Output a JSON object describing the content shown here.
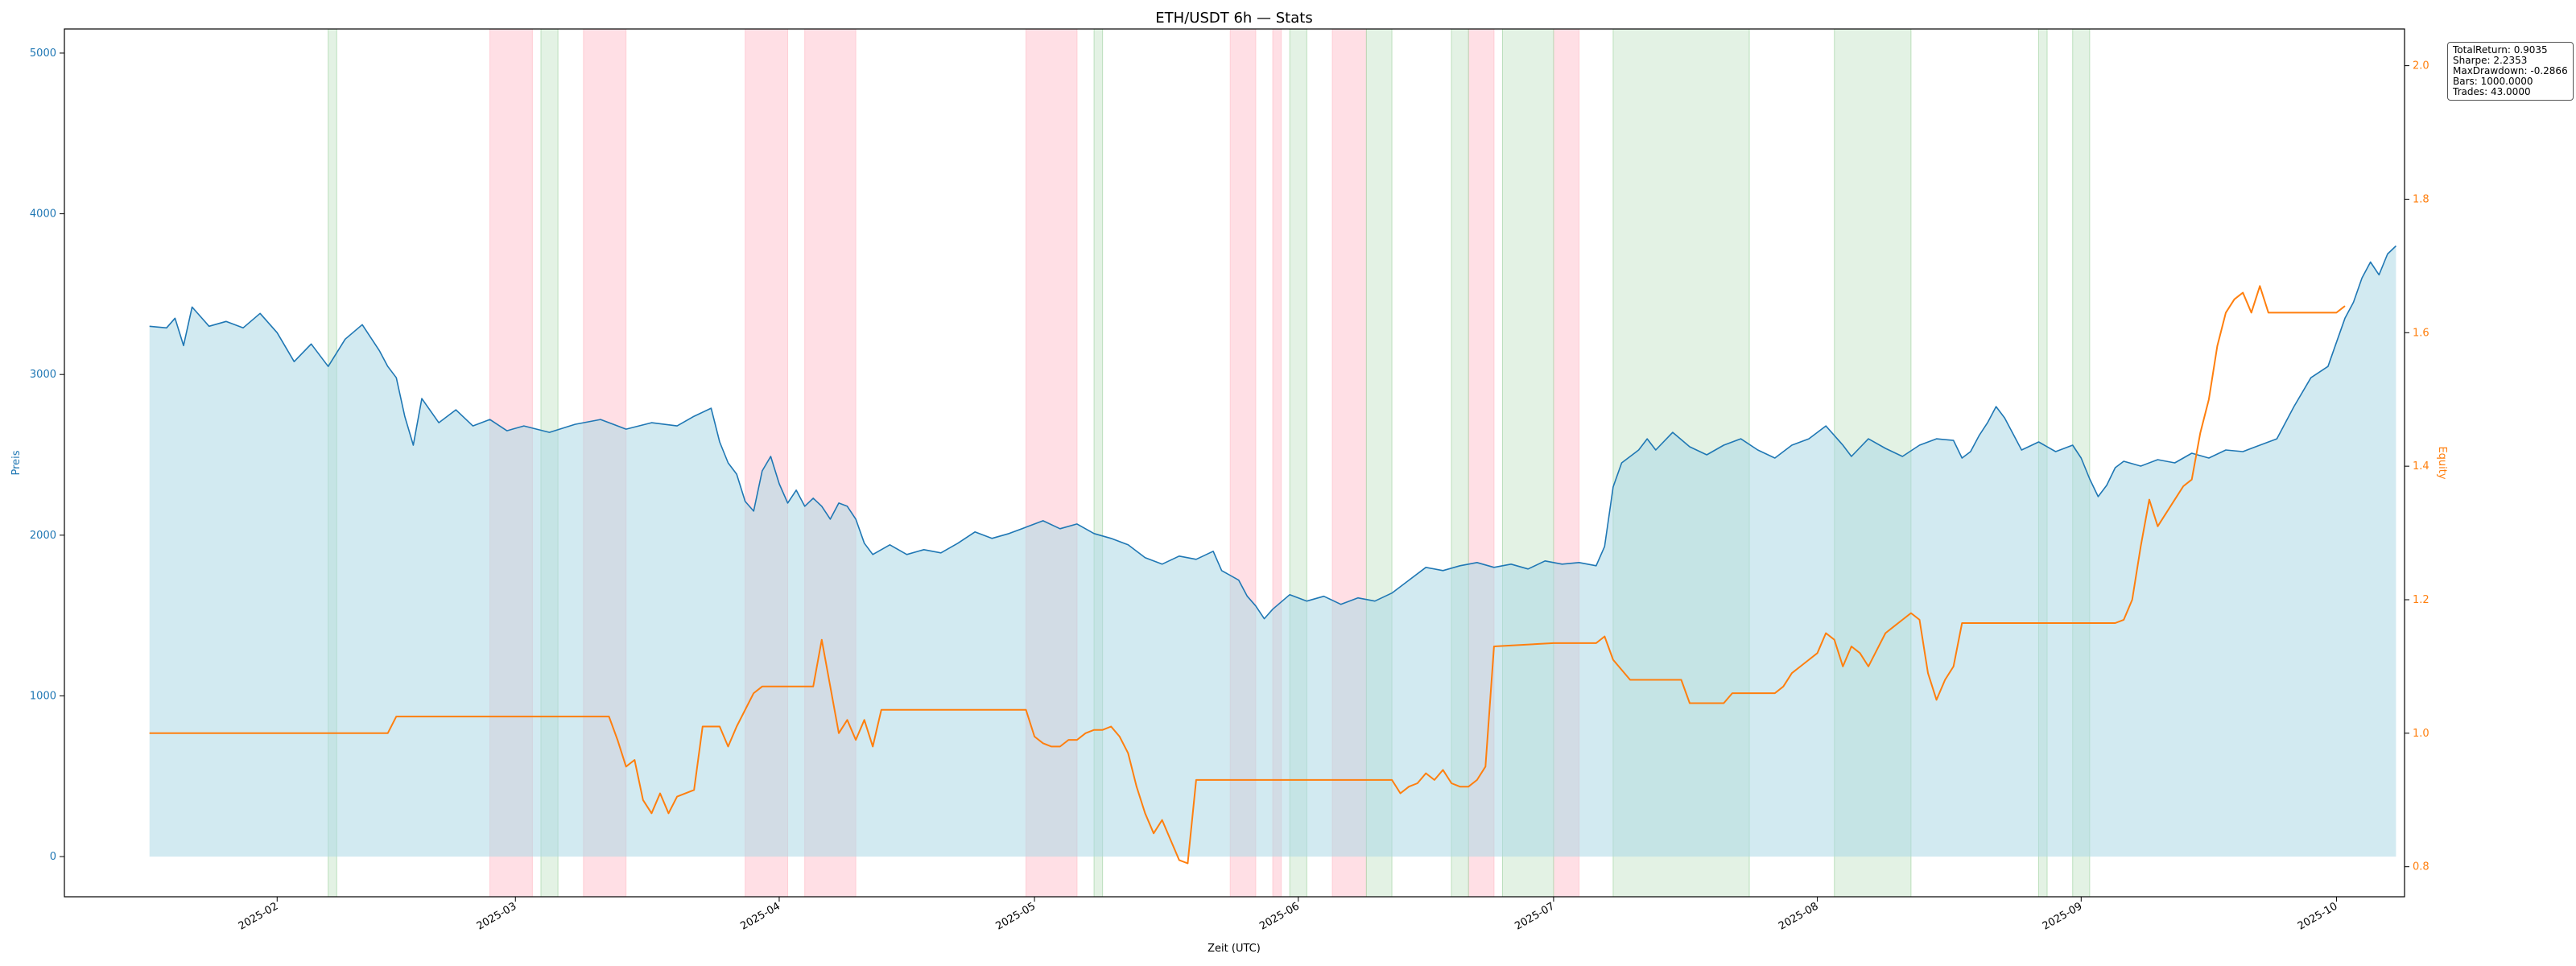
{
  "chart_data": {
    "type": "line",
    "title": "ETH/USDT 6h — Stats",
    "xlabel": "Zeit (UTC)",
    "y_left_label": "Preis",
    "y_right_label": "Equity",
    "colors": {
      "price": "#1f77b4",
      "equity": "#ff7f0e",
      "price_fill": "#add8e6",
      "short_span": "#ffc0cb",
      "long_span": "#c8e6c9"
    },
    "x_range": [
      "2025-01-07",
      "2025-10-09"
    ],
    "y_left_range": [
      -250,
      5150
    ],
    "y_right_range": [
      0.755,
      2.055
    ],
    "x_ticks": [
      "2025-02",
      "2025-03",
      "2025-04",
      "2025-05",
      "2025-06",
      "2025-07",
      "2025-08",
      "2025-09",
      "2025-10"
    ],
    "x_tick_dates": [
      "2025-02-01",
      "2025-03-01",
      "2025-04-01",
      "2025-05-01",
      "2025-06-01",
      "2025-07-01",
      "2025-08-01",
      "2025-09-01",
      "2025-10-01"
    ],
    "y_left_ticks": [
      0,
      1000,
      2000,
      3000,
      4000,
      5000
    ],
    "y_right_ticks": [
      0.8,
      1.0,
      1.2,
      1.4,
      1.6,
      1.8,
      2.0
    ],
    "price_series": {
      "name": "Preis",
      "points": [
        [
          "2025-01-17",
          3300
        ],
        [
          "2025-01-19",
          3290
        ],
        [
          "2025-01-20",
          3350
        ],
        [
          "2025-01-21",
          3180
        ],
        [
          "2025-01-22",
          3420
        ],
        [
          "2025-01-24",
          3300
        ],
        [
          "2025-01-26",
          3330
        ],
        [
          "2025-01-28",
          3290
        ],
        [
          "2025-01-30",
          3380
        ],
        [
          "2025-02-01",
          3260
        ],
        [
          "2025-02-03",
          3080
        ],
        [
          "2025-02-05",
          3190
        ],
        [
          "2025-02-06",
          3120
        ],
        [
          "2025-02-07",
          3050
        ],
        [
          "2025-02-09",
          3220
        ],
        [
          "2025-02-11",
          3310
        ],
        [
          "2025-02-13",
          3150
        ],
        [
          "2025-02-14",
          3050
        ],
        [
          "2025-02-15",
          2980
        ],
        [
          "2025-02-16",
          2740
        ],
        [
          "2025-02-17",
          2560
        ],
        [
          "2025-02-18",
          2850
        ],
        [
          "2025-02-20",
          2700
        ],
        [
          "2025-02-22",
          2780
        ],
        [
          "2025-02-24",
          2680
        ],
        [
          "2025-02-26",
          2720
        ],
        [
          "2025-02-28",
          2650
        ],
        [
          "2025-03-02",
          2680
        ],
        [
          "2025-03-05",
          2640
        ],
        [
          "2025-03-08",
          2690
        ],
        [
          "2025-03-11",
          2720
        ],
        [
          "2025-03-14",
          2660
        ],
        [
          "2025-03-17",
          2700
        ],
        [
          "2025-03-20",
          2680
        ],
        [
          "2025-03-22",
          2740
        ],
        [
          "2025-03-24",
          2790
        ],
        [
          "2025-03-25",
          2580
        ],
        [
          "2025-03-26",
          2450
        ],
        [
          "2025-03-27",
          2380
        ],
        [
          "2025-03-28",
          2210
        ],
        [
          "2025-03-29",
          2150
        ],
        [
          "2025-03-30",
          2400
        ],
        [
          "2025-03-31",
          2490
        ],
        [
          "2025-04-01",
          2320
        ],
        [
          "2025-04-02",
          2200
        ],
        [
          "2025-04-03",
          2280
        ],
        [
          "2025-04-04",
          2180
        ],
        [
          "2025-04-05",
          2230
        ],
        [
          "2025-04-06",
          2180
        ],
        [
          "2025-04-07",
          2100
        ],
        [
          "2025-04-08",
          2200
        ],
        [
          "2025-04-09",
          2180
        ],
        [
          "2025-04-10",
          2100
        ],
        [
          "2025-04-11",
          1950
        ],
        [
          "2025-04-12",
          1880
        ],
        [
          "2025-04-14",
          1940
        ],
        [
          "2025-04-16",
          1880
        ],
        [
          "2025-04-18",
          1910
        ],
        [
          "2025-04-20",
          1890
        ],
        [
          "2025-04-22",
          1950
        ],
        [
          "2025-04-24",
          2020
        ],
        [
          "2025-04-26",
          1980
        ],
        [
          "2025-04-28",
          2010
        ],
        [
          "2025-04-30",
          2050
        ],
        [
          "2025-05-02",
          2090
        ],
        [
          "2025-05-04",
          2040
        ],
        [
          "2025-05-06",
          2070
        ],
        [
          "2025-05-08",
          2010
        ],
        [
          "2025-05-10",
          1980
        ],
        [
          "2025-05-12",
          1940
        ],
        [
          "2025-05-14",
          1860
        ],
        [
          "2025-05-16",
          1820
        ],
        [
          "2025-05-18",
          1870
        ],
        [
          "2025-05-20",
          1850
        ],
        [
          "2025-05-22",
          1900
        ],
        [
          "2025-05-23",
          1780
        ],
        [
          "2025-05-25",
          1720
        ],
        [
          "2025-05-26",
          1620
        ],
        [
          "2025-05-27",
          1560
        ],
        [
          "2025-05-28",
          1480
        ],
        [
          "2025-05-29",
          1540
        ],
        [
          "2025-05-31",
          1630
        ],
        [
          "2025-06-02",
          1590
        ],
        [
          "2025-06-04",
          1620
        ],
        [
          "2025-06-06",
          1570
        ],
        [
          "2025-06-08",
          1610
        ],
        [
          "2025-06-10",
          1590
        ],
        [
          "2025-06-12",
          1640
        ],
        [
          "2025-06-14",
          1720
        ],
        [
          "2025-06-16",
          1800
        ],
        [
          "2025-06-18",
          1780
        ],
        [
          "2025-06-20",
          1810
        ],
        [
          "2025-06-22",
          1830
        ],
        [
          "2025-06-24",
          1800
        ],
        [
          "2025-06-26",
          1820
        ],
        [
          "2025-06-28",
          1790
        ],
        [
          "2025-06-30",
          1840
        ],
        [
          "2025-07-02",
          1820
        ],
        [
          "2025-07-04",
          1830
        ],
        [
          "2025-07-06",
          1810
        ],
        [
          "2025-07-07",
          1930
        ],
        [
          "2025-07-08",
          2300
        ],
        [
          "2025-07-09",
          2450
        ],
        [
          "2025-07-11",
          2530
        ],
        [
          "2025-07-12",
          2600
        ],
        [
          "2025-07-13",
          2530
        ],
        [
          "2025-07-15",
          2640
        ],
        [
          "2025-07-17",
          2550
        ],
        [
          "2025-07-19",
          2500
        ],
        [
          "2025-07-21",
          2560
        ],
        [
          "2025-07-23",
          2600
        ],
        [
          "2025-07-25",
          2530
        ],
        [
          "2025-07-27",
          2480
        ],
        [
          "2025-07-29",
          2560
        ],
        [
          "2025-07-31",
          2600
        ],
        [
          "2025-08-02",
          2680
        ],
        [
          "2025-08-04",
          2560
        ],
        [
          "2025-08-05",
          2490
        ],
        [
          "2025-08-07",
          2600
        ],
        [
          "2025-08-09",
          2540
        ],
        [
          "2025-08-11",
          2490
        ],
        [
          "2025-08-13",
          2560
        ],
        [
          "2025-08-15",
          2600
        ],
        [
          "2025-08-17",
          2590
        ],
        [
          "2025-08-18",
          2480
        ],
        [
          "2025-08-19",
          2520
        ],
        [
          "2025-08-20",
          2620
        ],
        [
          "2025-08-21",
          2700
        ],
        [
          "2025-08-22",
          2800
        ],
        [
          "2025-08-23",
          2730
        ],
        [
          "2025-08-25",
          2530
        ],
        [
          "2025-08-27",
          2580
        ],
        [
          "2025-08-29",
          2520
        ],
        [
          "2025-08-31",
          2560
        ],
        [
          "2025-09-01",
          2480
        ],
        [
          "2025-09-02",
          2350
        ],
        [
          "2025-09-03",
          2240
        ],
        [
          "2025-09-04",
          2310
        ],
        [
          "2025-09-05",
          2420
        ],
        [
          "2025-09-06",
          2460
        ],
        [
          "2025-09-08",
          2430
        ],
        [
          "2025-09-10",
          2470
        ],
        [
          "2025-09-12",
          2450
        ],
        [
          "2025-09-14",
          2510
        ],
        [
          "2025-09-16",
          2480
        ],
        [
          "2025-09-18",
          2530
        ],
        [
          "2025-09-20",
          2520
        ],
        [
          "2025-09-22",
          2560
        ],
        [
          "2025-09-24",
          2600
        ],
        [
          "2025-09-26",
          2800
        ],
        [
          "2025-09-28",
          2980
        ],
        [
          "2025-09-30",
          3050
        ],
        [
          "2025-10-01",
          3200
        ],
        [
          "2025-10-02",
          3350
        ],
        [
          "2025-10-03",
          3450
        ],
        [
          "2025-10-04",
          3600
        ],
        [
          "2025-10-05",
          3700
        ],
        [
          "2025-10-06",
          3620
        ],
        [
          "2025-10-07",
          3750
        ],
        [
          "2025-10-08",
          3800
        ]
      ]
    },
    "equity_series": {
      "name": "Equity",
      "points": [
        [
          "2025-01-17",
          1.0
        ],
        [
          "2025-02-14",
          1.0
        ],
        [
          "2025-02-15",
          1.025
        ],
        [
          "2025-03-12",
          1.025
        ],
        [
          "2025-03-13",
          0.99
        ],
        [
          "2025-03-14",
          0.95
        ],
        [
          "2025-03-15",
          0.96
        ],
        [
          "2025-03-16",
          0.9
        ],
        [
          "2025-03-17",
          0.88
        ],
        [
          "2025-03-18",
          0.91
        ],
        [
          "2025-03-19",
          0.88
        ],
        [
          "2025-03-20",
          0.905
        ],
        [
          "2025-03-22",
          0.915
        ],
        [
          "2025-03-23",
          1.01
        ],
        [
          "2025-03-25",
          1.01
        ],
        [
          "2025-03-26",
          0.98
        ],
        [
          "2025-03-27",
          1.01
        ],
        [
          "2025-03-29",
          1.06
        ],
        [
          "2025-03-30",
          1.07
        ],
        [
          "2025-03-31",
          1.07
        ],
        [
          "2025-04-05",
          1.07
        ],
        [
          "2025-04-06",
          1.14
        ],
        [
          "2025-04-07",
          1.07
        ],
        [
          "2025-04-08",
          1.0
        ],
        [
          "2025-04-09",
          1.02
        ],
        [
          "2025-04-10",
          0.99
        ],
        [
          "2025-04-11",
          1.02
        ],
        [
          "2025-04-12",
          0.98
        ],
        [
          "2025-04-13",
          1.035
        ],
        [
          "2025-04-30",
          1.035
        ],
        [
          "2025-05-01",
          0.995
        ],
        [
          "2025-05-02",
          0.985
        ],
        [
          "2025-05-03",
          0.98
        ],
        [
          "2025-05-04",
          0.98
        ],
        [
          "2025-05-05",
          0.99
        ],
        [
          "2025-05-06",
          0.99
        ],
        [
          "2025-05-07",
          1.0
        ],
        [
          "2025-05-08",
          1.005
        ],
        [
          "2025-05-09",
          1.005
        ],
        [
          "2025-05-10",
          1.01
        ],
        [
          "2025-05-11",
          0.995
        ],
        [
          "2025-05-12",
          0.97
        ],
        [
          "2025-05-13",
          0.92
        ],
        [
          "2025-05-14",
          0.88
        ],
        [
          "2025-05-15",
          0.85
        ],
        [
          "2025-05-16",
          0.87
        ],
        [
          "2025-05-17",
          0.84
        ],
        [
          "2025-05-18",
          0.81
        ],
        [
          "2025-05-19",
          0.805
        ],
        [
          "2025-05-20",
          0.93
        ],
        [
          "2025-05-31",
          0.93
        ],
        [
          "2025-06-12",
          0.93
        ],
        [
          "2025-06-13",
          0.91
        ],
        [
          "2025-06-14",
          0.92
        ],
        [
          "2025-06-15",
          0.925
        ],
        [
          "2025-06-16",
          0.94
        ],
        [
          "2025-06-17",
          0.93
        ],
        [
          "2025-06-18",
          0.945
        ],
        [
          "2025-06-19",
          0.925
        ],
        [
          "2025-06-20",
          0.92
        ],
        [
          "2025-06-21",
          0.92
        ],
        [
          "2025-06-22",
          0.93
        ],
        [
          "2025-06-23",
          0.95
        ],
        [
          "2025-06-24",
          1.13
        ],
        [
          "2025-07-01",
          1.135
        ],
        [
          "2025-07-06",
          1.135
        ],
        [
          "2025-07-07",
          1.145
        ],
        [
          "2025-07-08",
          1.11
        ],
        [
          "2025-07-09",
          1.095
        ],
        [
          "2025-07-10",
          1.08
        ],
        [
          "2025-07-12",
          1.08
        ],
        [
          "2025-07-13",
          1.08
        ],
        [
          "2025-07-16",
          1.08
        ],
        [
          "2025-07-17",
          1.045
        ],
        [
          "2025-07-21",
          1.045
        ],
        [
          "2025-07-22",
          1.06
        ],
        [
          "2025-07-27",
          1.06
        ],
        [
          "2025-07-28",
          1.07
        ],
        [
          "2025-07-29",
          1.09
        ],
        [
          "2025-07-30",
          1.1
        ],
        [
          "2025-07-31",
          1.11
        ],
        [
          "2025-08-01",
          1.12
        ],
        [
          "2025-08-02",
          1.15
        ],
        [
          "2025-08-03",
          1.14
        ],
        [
          "2025-08-04",
          1.1
        ],
        [
          "2025-08-05",
          1.13
        ],
        [
          "2025-08-06",
          1.12
        ],
        [
          "2025-08-07",
          1.1
        ],
        [
          "2025-08-08",
          1.125
        ],
        [
          "2025-08-09",
          1.15
        ],
        [
          "2025-08-10",
          1.16
        ],
        [
          "2025-08-11",
          1.17
        ],
        [
          "2025-08-12",
          1.18
        ],
        [
          "2025-08-13",
          1.17
        ],
        [
          "2025-08-14",
          1.09
        ],
        [
          "2025-08-15",
          1.05
        ],
        [
          "2025-08-16",
          1.08
        ],
        [
          "2025-08-17",
          1.1
        ],
        [
          "2025-08-18",
          1.165
        ],
        [
          "2025-08-29",
          1.165
        ],
        [
          "2025-09-05",
          1.165
        ],
        [
          "2025-09-06",
          1.17
        ],
        [
          "2025-09-07",
          1.2
        ],
        [
          "2025-09-08",
          1.28
        ],
        [
          "2025-09-09",
          1.35
        ],
        [
          "2025-09-10",
          1.31
        ],
        [
          "2025-09-11",
          1.33
        ],
        [
          "2025-09-12",
          1.35
        ],
        [
          "2025-09-13",
          1.37
        ],
        [
          "2025-09-14",
          1.38
        ],
        [
          "2025-09-15",
          1.45
        ],
        [
          "2025-09-16",
          1.5
        ],
        [
          "2025-09-17",
          1.58
        ],
        [
          "2025-09-18",
          1.63
        ],
        [
          "2025-09-19",
          1.65
        ],
        [
          "2025-09-20",
          1.66
        ],
        [
          "2025-09-21",
          1.63
        ],
        [
          "2025-09-22",
          1.67
        ],
        [
          "2025-09-23",
          1.63
        ],
        [
          "2025-09-26",
          1.63
        ],
        [
          "2025-09-30",
          1.63
        ],
        [
          "2025-10-01",
          1.63
        ],
        [
          "2025-10-02",
          1.64
        ]
      ]
    },
    "short_spans": [
      [
        "2025-02-26",
        "2025-03-03"
      ],
      [
        "2025-03-09",
        "2025-03-14"
      ],
      [
        "2025-03-28",
        "2025-04-02"
      ],
      [
        "2025-04-04",
        "2025-04-10"
      ],
      [
        "2025-04-30",
        "2025-05-06"
      ],
      [
        "2025-05-24",
        "2025-05-27"
      ],
      [
        "2025-05-29",
        "2025-05-30"
      ],
      [
        "2025-06-05",
        "2025-06-09"
      ],
      [
        "2025-06-21",
        "2025-06-24"
      ],
      [
        "2025-07-01",
        "2025-07-04"
      ]
    ],
    "long_spans": [
      [
        "2025-02-07",
        "2025-02-08"
      ],
      [
        "2025-03-04",
        "2025-03-06"
      ],
      [
        "2025-05-08",
        "2025-05-09"
      ],
      [
        "2025-05-31",
        "2025-06-02"
      ],
      [
        "2025-06-09",
        "2025-06-12"
      ],
      [
        "2025-06-19",
        "2025-06-21"
      ],
      [
        "2025-06-25",
        "2025-07-01"
      ],
      [
        "2025-07-08",
        "2025-07-24"
      ],
      [
        "2025-08-03",
        "2025-08-12"
      ],
      [
        "2025-08-27",
        "2025-08-28"
      ],
      [
        "2025-08-31",
        "2025-09-02"
      ]
    ],
    "stats_lines": [
      "TotalReturn: 0.9035",
      "Sharpe: 2.2353",
      "MaxDrawdown: -0.2866",
      "Bars: 1000.0000",
      "Trades: 43.0000"
    ]
  }
}
